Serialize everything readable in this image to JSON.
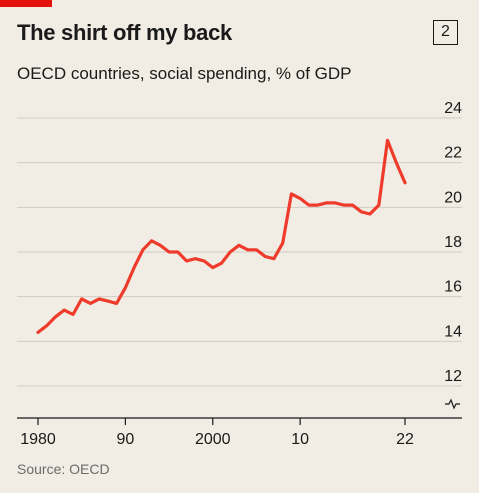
{
  "header": {
    "title": "The shirt off my back",
    "chart_number": "2",
    "subtitle": "OECD countries, social spending, % of GDP"
  },
  "footer": {
    "source": "Source: OECD"
  },
  "colors": {
    "background": "#f1ede4",
    "accent_tag": "#e3120b",
    "line": "#ef3b2c",
    "grid": "#d2cdc4",
    "text": "#1a1a1a"
  },
  "chart_data": {
    "type": "line",
    "title": "The shirt off my back",
    "subtitle": "OECD countries, social spending, % of GDP",
    "xlabel": "",
    "ylabel": "",
    "xlim": [
      1980,
      2022
    ],
    "ylim": [
      12,
      24
    ],
    "x_tick_labels": [
      {
        "x": 1980,
        "label": "1980"
      },
      {
        "x": 1990,
        "label": "90"
      },
      {
        "x": 2000,
        "label": "2000"
      },
      {
        "x": 2010,
        "label": "10"
      },
      {
        "x": 2022,
        "label": "22"
      }
    ],
    "y_ticks": [
      12,
      14,
      16,
      18,
      20,
      22,
      24
    ],
    "y_axis_side": "right",
    "y_axis_broken": true,
    "grid": true,
    "series": [
      {
        "x": [
          1980,
          1981,
          1982,
          1983,
          1984,
          1985,
          1986,
          1987,
          1988,
          1989,
          1990,
          1991,
          1992,
          1993,
          1994,
          1995,
          1996,
          1997,
          1998,
          1999,
          2000,
          2001,
          2002,
          2003,
          2004,
          2005,
          2006,
          2007,
          2008,
          2009,
          2010,
          2011,
          2012,
          2013,
          2014,
          2015,
          2016,
          2017,
          2018,
          2019,
          2020,
          2021,
          2022
        ],
        "values": [
          14.4,
          14.7,
          15.1,
          15.4,
          15.2,
          15.9,
          15.7,
          15.9,
          15.8,
          15.7,
          16.4,
          17.3,
          18.1,
          18.5,
          18.3,
          18.0,
          18.0,
          17.6,
          17.7,
          17.6,
          17.3,
          17.5,
          18.0,
          18.3,
          18.1,
          18.1,
          17.8,
          17.7,
          18.4,
          20.6,
          20.4,
          20.1,
          20.1,
          20.2,
          20.2,
          20.1,
          20.1,
          19.8,
          19.7,
          20.1,
          23.0,
          22.0,
          21.1
        ]
      }
    ]
  }
}
